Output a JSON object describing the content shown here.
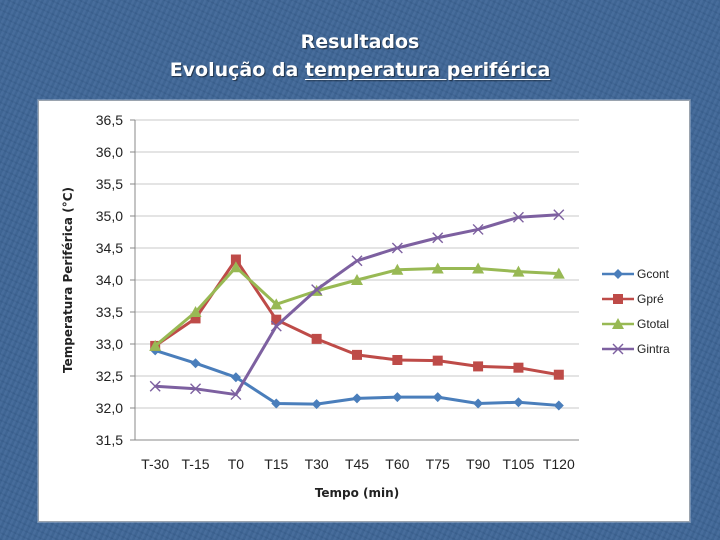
{
  "slide": {
    "title_line1": "Resultados",
    "title_line2_prefix": "Evolução da ",
    "title_line2_underlined": "temperatura periférica"
  },
  "chart_data": {
    "type": "line",
    "title": "",
    "xlabel": "Tempo (min)",
    "ylabel": "Temperatura Periférica (°C)",
    "categories": [
      "T-30",
      "T-15",
      "T0",
      "T15",
      "T30",
      "T45",
      "T60",
      "T75",
      "T90",
      "T105",
      "T120"
    ],
    "ylim": [
      31.5,
      36.5
    ],
    "yticks": [
      31.5,
      32.0,
      32.5,
      33.0,
      33.5,
      34.0,
      34.5,
      35.0,
      35.5,
      36.0,
      36.5
    ],
    "ytick_labels": [
      "31,5",
      "32,0",
      "32,5",
      "33,0",
      "33,5",
      "34,0",
      "34,5",
      "35,0",
      "35,5",
      "36,0",
      "36,5"
    ],
    "grid": "horizontal",
    "legend_position": "right",
    "series": [
      {
        "name": "Gcont",
        "color": "#4a7ebb",
        "marker": "diamond",
        "values": [
          32.9,
          32.7,
          32.48,
          32.07,
          32.06,
          32.15,
          32.17,
          32.17,
          32.07,
          32.09,
          32.04
        ]
      },
      {
        "name": "Gpré",
        "color": "#be4b48",
        "marker": "square",
        "values": [
          32.97,
          33.4,
          34.32,
          33.38,
          33.08,
          32.83,
          32.75,
          32.74,
          32.65,
          32.63,
          32.52
        ]
      },
      {
        "name": "Gtotal",
        "color": "#98b954",
        "marker": "triangle",
        "values": [
          32.97,
          33.5,
          34.2,
          33.62,
          33.83,
          34.0,
          34.16,
          34.18,
          34.18,
          34.13,
          34.1
        ]
      },
      {
        "name": "Gintra",
        "color": "#7d60a0",
        "marker": "x",
        "values": [
          32.34,
          32.3,
          32.21,
          33.28,
          33.85,
          34.3,
          34.5,
          34.66,
          34.79,
          34.98,
          35.02
        ]
      }
    ]
  }
}
